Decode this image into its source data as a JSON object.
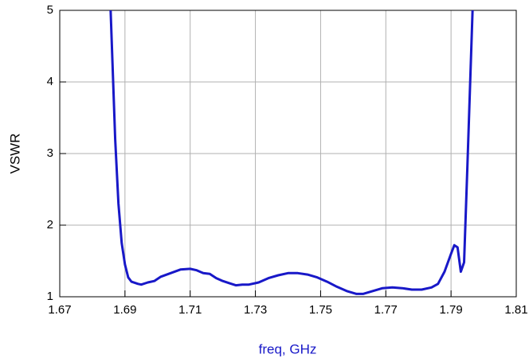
{
  "chart_data": {
    "type": "line",
    "xlabel": "freq, GHz",
    "ylabel": "VSWR",
    "x": [
      1.6856,
      1.687,
      1.688,
      1.689,
      1.69,
      1.691,
      1.692,
      1.694,
      1.695,
      1.697,
      1.699,
      1.701,
      1.704,
      1.707,
      1.71,
      1.712,
      1.714,
      1.716,
      1.718,
      1.72,
      1.722,
      1.724,
      1.726,
      1.728,
      1.731,
      1.734,
      1.737,
      1.74,
      1.743,
      1.746,
      1.749,
      1.752,
      1.755,
      1.758,
      1.761,
      1.763,
      1.766,
      1.769,
      1.772,
      1.775,
      1.778,
      1.781,
      1.784,
      1.786,
      1.788,
      1.79,
      1.791,
      1.792,
      1.793,
      1.794,
      1.795,
      1.7966
    ],
    "series": [
      {
        "name": "VSWR",
        "color": "#1818c8",
        "values": [
          5,
          3.2,
          2.3,
          1.75,
          1.45,
          1.27,
          1.21,
          1.18,
          1.17,
          1.2,
          1.22,
          1.28,
          1.33,
          1.38,
          1.39,
          1.37,
          1.33,
          1.32,
          1.26,
          1.22,
          1.19,
          1.16,
          1.17,
          1.17,
          1.2,
          1.26,
          1.3,
          1.33,
          1.33,
          1.31,
          1.27,
          1.21,
          1.14,
          1.08,
          1.04,
          1.04,
          1.08,
          1.12,
          1.13,
          1.12,
          1.1,
          1.1,
          1.13,
          1.18,
          1.35,
          1.6,
          1.72,
          1.69,
          1.35,
          1.48,
          2.8,
          5
        ]
      }
    ],
    "xlim": [
      1.67,
      1.81
    ],
    "xticks": [
      1.67,
      1.69,
      1.71,
      1.73,
      1.75,
      1.77,
      1.79,
      1.81
    ],
    "ylim": [
      1,
      5
    ],
    "yticks": [
      1,
      2,
      3,
      4,
      5
    ],
    "grid": true,
    "xlabel_color": "#1818c8"
  }
}
